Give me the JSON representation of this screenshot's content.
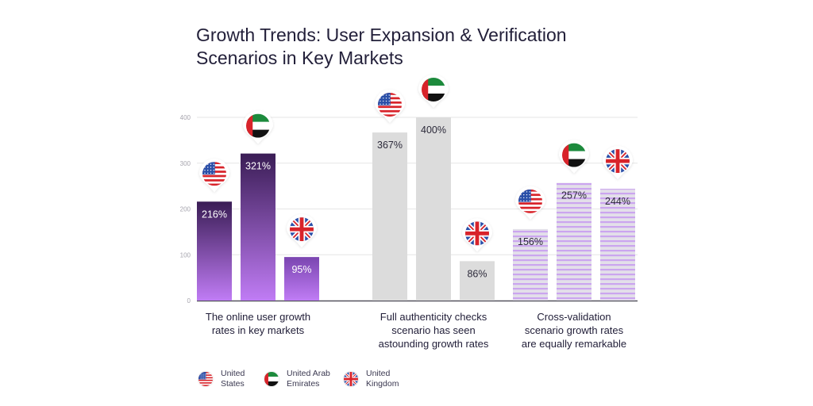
{
  "chart_data": {
    "type": "bar",
    "title": "Growth Trends: User Expansion & Verification Scenarios in Key Markets",
    "xlabel": "",
    "ylabel": "",
    "ylim": [
      0,
      400
    ],
    "yticks": [
      0,
      100,
      200,
      300,
      400
    ],
    "grid": true,
    "value_suffix": "%",
    "groups": [
      {
        "caption": "The online user growth rates in key markets",
        "style": "purple-gradient",
        "bars": [
          {
            "country": "United States",
            "flag": "us-flag",
            "value": 216
          },
          {
            "country": "United Arab Emirates",
            "flag": "uae-flag",
            "value": 321
          },
          {
            "country": "United Kingdom",
            "flag": "uk-flag",
            "value": 95
          }
        ]
      },
      {
        "caption": "Full authenticity checks scenario has seen astounding growth rates",
        "style": "gray",
        "bars": [
          {
            "country": "United States",
            "flag": "us-flag",
            "value": 367
          },
          {
            "country": "United Arab Emirates",
            "flag": "uae-flag",
            "value": 400
          },
          {
            "country": "United Kingdom",
            "flag": "uk-flag",
            "value": 86
          }
        ]
      },
      {
        "caption": "Cross-validation scenario growth rates are equally remarkable",
        "style": "striped",
        "bars": [
          {
            "country": "United States",
            "flag": "us-flag",
            "value": 156
          },
          {
            "country": "United Arab Emirates",
            "flag": "uae-flag",
            "value": 257
          },
          {
            "country": "United Kingdom",
            "flag": "uk-flag",
            "value": 244
          }
        ]
      }
    ],
    "legend": {
      "placement": "bottom-left",
      "entries": [
        {
          "flag": "us-flag",
          "label_line1": "United",
          "label_line2": "States"
        },
        {
          "flag": "uae-flag",
          "label_line1": "United Arab",
          "label_line2": "Emirates"
        },
        {
          "flag": "uk-flag",
          "label_line1": "United",
          "label_line2": "Kingdom"
        }
      ]
    },
    "colors": {
      "gradient_top": "#3a1d55",
      "gradient_bottom": "#c07cf5",
      "gray": "#dcdcdc",
      "stripe_light": "#e1dde8",
      "stripe_purple": "#c9a3ee",
      "axis": "#55535f",
      "grid": "#e6e6e6"
    }
  },
  "title_line1": "Growth Trends: User Expansion & Verification",
  "title_line2": "Scenarios in Key Markets",
  "captions": [
    [
      "The online user growth",
      "rates in key markets"
    ],
    [
      "Full authenticity checks",
      "scenario has seen",
      "astounding growth rates"
    ],
    [
      "Cross-validation",
      "scenario growth rates",
      "are equally remarkable"
    ]
  ]
}
